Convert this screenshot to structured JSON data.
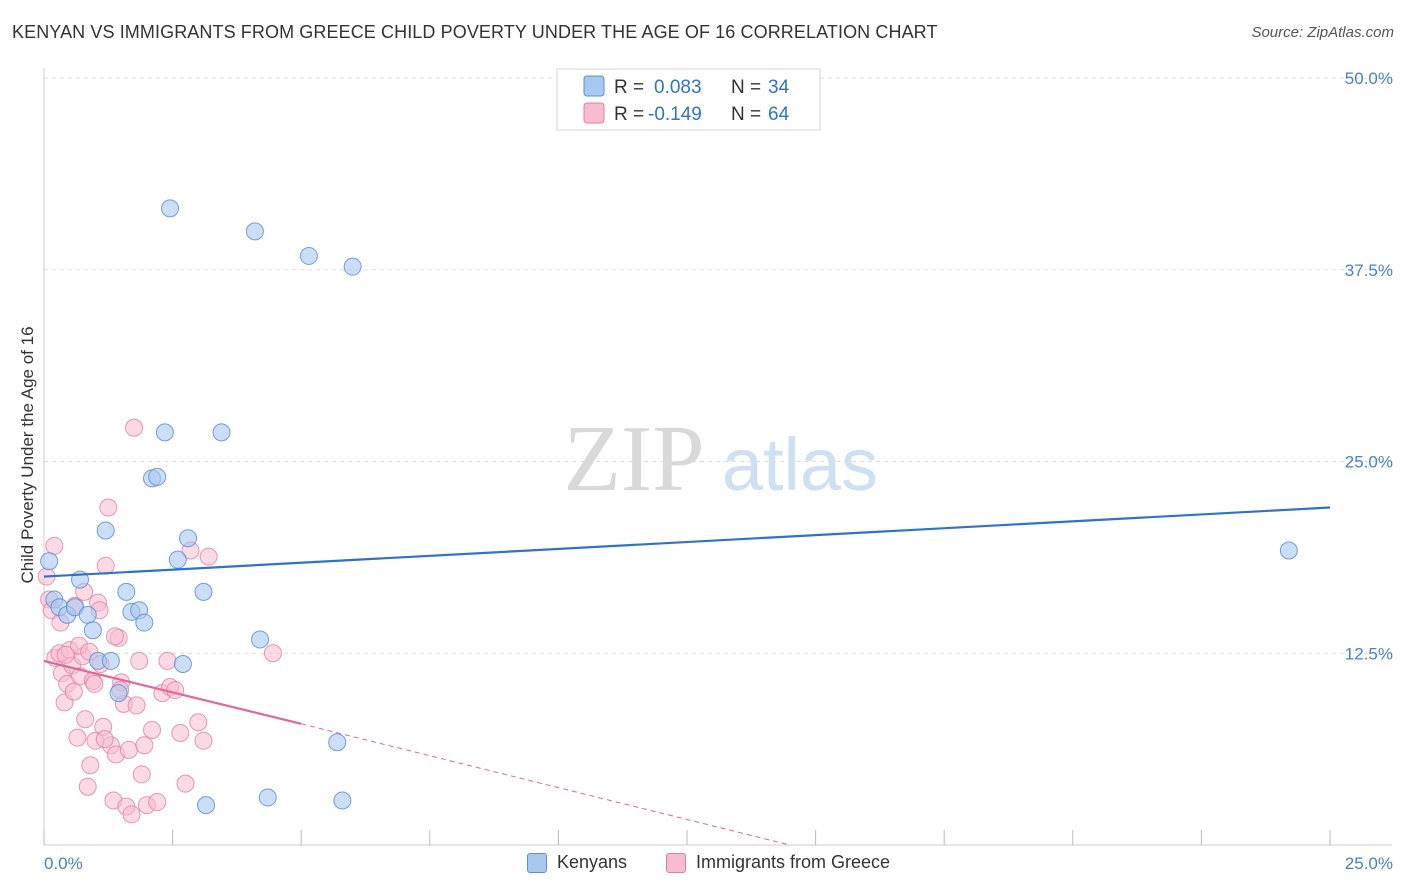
{
  "header": {
    "title": "KENYAN VS IMMIGRANTS FROM GREECE CHILD POVERTY UNDER THE AGE OF 16 CORRELATION CHART",
    "source": "Source: ZipAtlas.com"
  },
  "watermark": {
    "zip": "ZIP",
    "atlas": "atlas"
  },
  "legend": {
    "r_label": "R =",
    "n_label": "N =",
    "series": [
      {
        "name": "Kenyans",
        "r": "0.083",
        "n": "34",
        "fill": "#a9c8ef",
        "stroke": "#5a8fd6"
      },
      {
        "name": "Immigrants from Greece",
        "r": "-0.149",
        "n": "64",
        "fill": "#f7bcd0",
        "stroke": "#e07fa2"
      }
    ]
  },
  "colors": {
    "blue_line": "#2f73c9",
    "pink_line": "#e0679a",
    "tick_label": "#4a7fc9",
    "grid": "#dddddd"
  },
  "chart_data": {
    "type": "scatter",
    "title": "KENYAN VS IMMIGRANTS FROM GREECE CHILD POVERTY UNDER THE AGE OF 16 CORRELATION CHART",
    "xlabel": "",
    "ylabel": "Child Poverty Under the Age of 16",
    "xlim": [
      0,
      25
    ],
    "ylim": [
      0,
      50
    ],
    "x_tick_labels": [
      "0.0%",
      "25.0%"
    ],
    "y_ticks": [
      12.5,
      25.0,
      37.5,
      50.0
    ],
    "y_tick_labels": [
      "12.5%",
      "25.0%",
      "37.5%",
      "50.0%"
    ],
    "grid": true,
    "legend_position": "top-center",
    "series": [
      {
        "name": "Kenyans",
        "r": 0.083,
        "n": 34,
        "trend": {
          "x": [
            0,
            25
          ],
          "y": [
            17.5,
            22.0
          ]
        },
        "points": [
          {
            "x": 0.1,
            "y": 18.5
          },
          {
            "x": 0.2,
            "y": 16.0
          },
          {
            "x": 0.3,
            "y": 15.5
          },
          {
            "x": 0.45,
            "y": 15.0
          },
          {
            "x": 0.6,
            "y": 15.5
          },
          {
            "x": 0.7,
            "y": 17.3
          },
          {
            "x": 0.85,
            "y": 15.0
          },
          {
            "x": 0.95,
            "y": 14.0
          },
          {
            "x": 1.05,
            "y": 12.0
          },
          {
            "x": 1.2,
            "y": 20.5
          },
          {
            "x": 1.3,
            "y": 12.0
          },
          {
            "x": 1.45,
            "y": 9.9
          },
          {
            "x": 1.6,
            "y": 16.5
          },
          {
            "x": 1.7,
            "y": 15.2
          },
          {
            "x": 1.85,
            "y": 15.3
          },
          {
            "x": 1.95,
            "y": 14.5
          },
          {
            "x": 2.1,
            "y": 23.9
          },
          {
            "x": 2.2,
            "y": 24.0
          },
          {
            "x": 2.35,
            "y": 26.9
          },
          {
            "x": 2.45,
            "y": 41.5
          },
          {
            "x": 2.6,
            "y": 18.6
          },
          {
            "x": 2.7,
            "y": 11.8
          },
          {
            "x": 2.8,
            "y": 20.0
          },
          {
            "x": 3.1,
            "y": 16.5
          },
          {
            "x": 3.15,
            "y": 2.6
          },
          {
            "x": 3.45,
            "y": 26.9
          },
          {
            "x": 4.1,
            "y": 40.0
          },
          {
            "x": 4.2,
            "y": 13.4
          },
          {
            "x": 4.35,
            "y": 3.1
          },
          {
            "x": 5.15,
            "y": 38.4
          },
          {
            "x": 5.7,
            "y": 6.7
          },
          {
            "x": 5.8,
            "y": 2.9
          },
          {
            "x": 6.0,
            "y": 37.7
          },
          {
            "x": 24.2,
            "y": 19.2
          }
        ]
      },
      {
        "name": "Immigrants from Greece",
        "r": -0.149,
        "n": 64,
        "trend": {
          "x": [
            0,
            5
          ],
          "y": [
            12.0,
            7.9
          ]
        },
        "trend_extension": {
          "x": [
            5,
            14.5
          ],
          "y": [
            7.9,
            0.0
          ]
        },
        "points": [
          {
            "x": 0.05,
            "y": 17.5
          },
          {
            "x": 0.1,
            "y": 16.0
          },
          {
            "x": 0.15,
            "y": 15.3
          },
          {
            "x": 0.2,
            "y": 19.5
          },
          {
            "x": 0.22,
            "y": 12.2
          },
          {
            "x": 0.3,
            "y": 12.5
          },
          {
            "x": 0.35,
            "y": 11.2
          },
          {
            "x": 0.4,
            "y": 9.3
          },
          {
            "x": 0.45,
            "y": 10.5
          },
          {
            "x": 0.5,
            "y": 12.7
          },
          {
            "x": 0.55,
            "y": 11.7
          },
          {
            "x": 0.6,
            "y": 15.6
          },
          {
            "x": 0.65,
            "y": 7.0
          },
          {
            "x": 0.7,
            "y": 11.0
          },
          {
            "x": 0.75,
            "y": 12.3
          },
          {
            "x": 0.8,
            "y": 8.2
          },
          {
            "x": 0.85,
            "y": 3.8
          },
          {
            "x": 0.9,
            "y": 5.2
          },
          {
            "x": 0.95,
            "y": 10.7
          },
          {
            "x": 1.0,
            "y": 6.8
          },
          {
            "x": 1.05,
            "y": 15.8
          },
          {
            "x": 1.1,
            "y": 11.8
          },
          {
            "x": 1.15,
            "y": 7.7
          },
          {
            "x": 1.2,
            "y": 18.2
          },
          {
            "x": 1.25,
            "y": 22.0
          },
          {
            "x": 1.3,
            "y": 6.5
          },
          {
            "x": 1.35,
            "y": 2.9
          },
          {
            "x": 1.4,
            "y": 5.9
          },
          {
            "x": 1.45,
            "y": 13.5
          },
          {
            "x": 1.5,
            "y": 10.6
          },
          {
            "x": 1.55,
            "y": 9.2
          },
          {
            "x": 1.6,
            "y": 2.5
          },
          {
            "x": 1.65,
            "y": 6.2
          },
          {
            "x": 1.7,
            "y": 2.0
          },
          {
            "x": 1.75,
            "y": 27.2
          },
          {
            "x": 1.8,
            "y": 9.1
          },
          {
            "x": 1.85,
            "y": 12.0
          },
          {
            "x": 1.9,
            "y": 4.6
          },
          {
            "x": 1.95,
            "y": 6.5
          },
          {
            "x": 2.0,
            "y": 2.6
          },
          {
            "x": 2.1,
            "y": 7.5
          },
          {
            "x": 2.2,
            "y": 2.8
          },
          {
            "x": 2.3,
            "y": 9.9
          },
          {
            "x": 2.4,
            "y": 12.0
          },
          {
            "x": 2.45,
            "y": 10.3
          },
          {
            "x": 2.55,
            "y": 10.1
          },
          {
            "x": 2.65,
            "y": 7.3
          },
          {
            "x": 2.75,
            "y": 4.0
          },
          {
            "x": 2.85,
            "y": 19.2
          },
          {
            "x": 3.0,
            "y": 8.0
          },
          {
            "x": 3.1,
            "y": 6.8
          },
          {
            "x": 3.2,
            "y": 18.8
          },
          {
            "x": 4.45,
            "y": 12.5
          },
          {
            "x": 0.58,
            "y": 10.0
          },
          {
            "x": 0.68,
            "y": 13.0
          },
          {
            "x": 0.78,
            "y": 16.5
          },
          {
            "x": 0.88,
            "y": 12.6
          },
          {
            "x": 0.98,
            "y": 10.5
          },
          {
            "x": 1.08,
            "y": 15.3
          },
          {
            "x": 1.18,
            "y": 6.9
          },
          {
            "x": 1.38,
            "y": 13.6
          },
          {
            "x": 1.48,
            "y": 10.1
          },
          {
            "x": 0.32,
            "y": 14.5
          },
          {
            "x": 0.42,
            "y": 12.4
          }
        ]
      }
    ]
  }
}
